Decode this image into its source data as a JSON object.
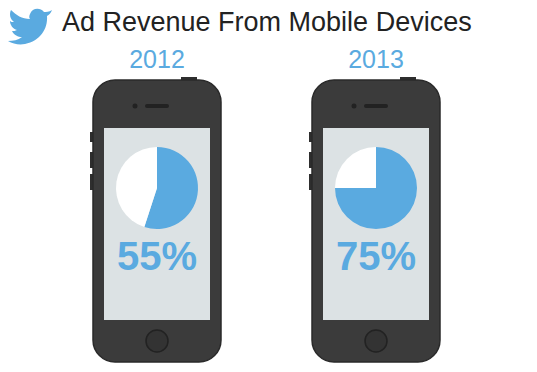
{
  "title": "Ad Revenue From Mobile Devices",
  "chart_data": [
    {
      "type": "pie",
      "title": "2012",
      "categories": [
        null,
        null
      ],
      "values": [
        55,
        45
      ],
      "value_labels": [
        "55%",
        null
      ],
      "colors": [
        "#5aaae0",
        "#ffffff"
      ],
      "data_labels": true
    },
    {
      "type": "pie",
      "title": "2013",
      "categories": [
        null,
        null
      ],
      "values": [
        75,
        25
      ],
      "value_labels": [
        "75%",
        null
      ],
      "colors": [
        "#5aaae0",
        "#ffffff"
      ],
      "data_labels": true
    }
  ]
}
